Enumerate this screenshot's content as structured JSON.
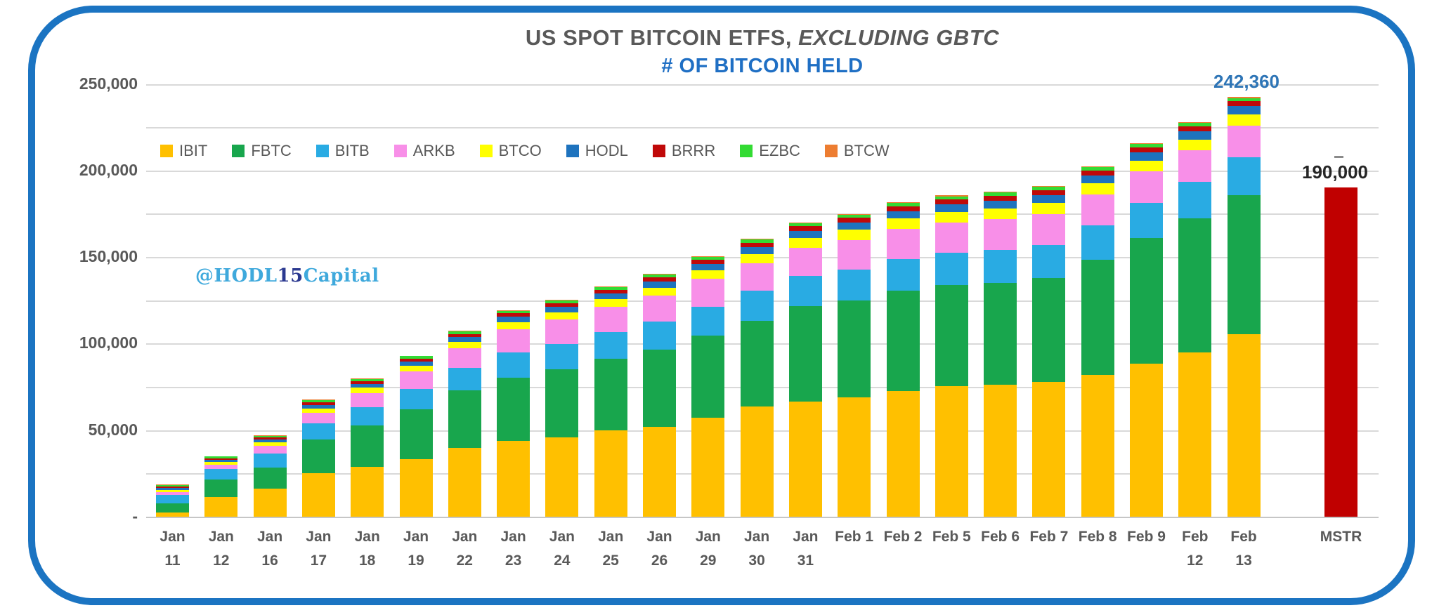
{
  "header": {
    "title_plain": "US SPOT BITCOIN ETFS, ",
    "title_italic": "EXCLUDING GBTC",
    "subtitle": "# OF BITCOIN HELD"
  },
  "watermark": {
    "prefix": "@HODL",
    "mid": "15",
    "suffix": "Capital"
  },
  "colors": {
    "border": "#1B74C2",
    "title": "#595959",
    "subtitle": "#1F6FC4",
    "axis_text": "#595959",
    "gridline": "#D9D9D9",
    "annotation_blue": "#2E75B6",
    "annotation_black": "#262626",
    "watermark_light_blue": "#3FA9DC",
    "watermark_dark_blue": "#2B3990"
  },
  "chart_data": {
    "type": "bar",
    "stacked": true,
    "title": "US SPOT BITCOIN ETFS, EXCLUDING GBTC",
    "subtitle": "# OF BITCOIN HELD",
    "xlabel": "",
    "ylabel": "",
    "ylim": [
      0,
      250000
    ],
    "gridline_step": 25000,
    "grid": true,
    "legend_position": "top",
    "y_axis": {
      "ticks": [
        {
          "label": "250,000",
          "value": 250000
        },
        {
          "label": "200,000",
          "value": 200000
        },
        {
          "label": "150,000",
          "value": 150000
        },
        {
          "label": "100,000",
          "value": 100000
        },
        {
          "label": "50,000",
          "value": 50000
        },
        {
          "label": "-",
          "value": 0
        }
      ]
    },
    "categories": [
      "Jan 11",
      "Jan 12",
      "Jan 16",
      "Jan 17",
      "Jan 18",
      "Jan 19",
      "Jan 22",
      "Jan 23",
      "Jan 24",
      "Jan 25",
      "Jan 26",
      "Jan 29",
      "Jan 30",
      "Jan 31",
      "Feb 1",
      "Feb 2",
      "Feb 5",
      "Feb 6",
      "Feb 7",
      "Feb 8",
      "Feb 9",
      "Feb 12",
      "Feb 13"
    ],
    "categories_lines": [
      [
        "Jan",
        "11"
      ],
      [
        "Jan",
        "12"
      ],
      [
        "Jan",
        "16"
      ],
      [
        "Jan",
        "17"
      ],
      [
        "Jan",
        "18"
      ],
      [
        "Jan",
        "19"
      ],
      [
        "Jan",
        "22"
      ],
      [
        "Jan",
        "23"
      ],
      [
        "Jan",
        "24"
      ],
      [
        "Jan",
        "25"
      ],
      [
        "Jan",
        "26"
      ],
      [
        "Jan",
        "29"
      ],
      [
        "Jan",
        "30"
      ],
      [
        "Jan",
        "31"
      ],
      [
        "Feb 1"
      ],
      [
        "Feb 2"
      ],
      [
        "Feb 5"
      ],
      [
        "Feb 6"
      ],
      [
        "Feb 7"
      ],
      [
        "Feb 8"
      ],
      [
        "Feb 9"
      ],
      [
        "Feb",
        "12"
      ],
      [
        "Feb",
        "13"
      ]
    ],
    "series": [
      {
        "name": "IBIT",
        "color": "#FFC000",
        "values": [
          2620,
          11440,
          16360,
          25070,
          28620,
          33430,
          39925,
          44000,
          45700,
          49950,
          52000,
          57000,
          63490,
          66620,
          69000,
          72470,
          75400,
          76420,
          78010,
          82100,
          88500,
          94870,
          105280
        ]
      },
      {
        "name": "FBTC",
        "color": "#18A64D",
        "values": [
          4920,
          9940,
          12110,
          19500,
          24300,
          28500,
          33000,
          36500,
          39300,
          41500,
          44500,
          47500,
          49800,
          55000,
          56000,
          58000,
          58300,
          58800,
          60000,
          66500,
          72500,
          77500,
          80500
        ]
      },
      {
        "name": "BITB",
        "color": "#29ABE3",
        "values": [
          5150,
          6300,
          7900,
          9300,
          10500,
          12000,
          13000,
          14500,
          14850,
          15400,
          16100,
          16900,
          17200,
          17400,
          17800,
          18300,
          18600,
          18800,
          19000,
          19600,
          20300,
          21000,
          21800
        ]
      },
      {
        "name": "ARKB",
        "color": "#F88FE8",
        "values": [
          1480,
          2310,
          4800,
          6200,
          8150,
          10100,
          11500,
          13400,
          13950,
          14300,
          15100,
          15900,
          16000,
          16300,
          17100,
          17400,
          17600,
          17800,
          17950,
          18050,
          18100,
          18150,
          18200
        ]
      },
      {
        "name": "BTCO",
        "color": "#FFFF00",
        "values": [
          1110,
          1480,
          1800,
          2600,
          2900,
          3200,
          3600,
          4100,
          4200,
          4400,
          4700,
          5000,
          5300,
          5600,
          5800,
          6000,
          6100,
          6200,
          6250,
          6350,
          6400,
          6450,
          6500
        ]
      },
      {
        "name": "HODL",
        "color": "#1E73BE",
        "values": [
          1170,
          1310,
          1500,
          2000,
          2200,
          2500,
          2700,
          3000,
          3200,
          3400,
          3600,
          3800,
          4000,
          4200,
          4300,
          4400,
          4500,
          4550,
          4600,
          4650,
          4700,
          4750,
          4800
        ]
      },
      {
        "name": "BRRR",
        "color": "#C00909",
        "values": [
          1100,
          1100,
          1250,
          1500,
          1600,
          1700,
          1850,
          2000,
          2100,
          2200,
          2300,
          2400,
          2500,
          2600,
          2650,
          2700,
          2720,
          2740,
          2760,
          2790,
          2810,
          2830,
          2850
        ]
      },
      {
        "name": "EZBC",
        "color": "#33DB33",
        "values": [
          750,
          900,
          1000,
          1100,
          1200,
          1300,
          1400,
          1500,
          1550,
          1600,
          1650,
          1700,
          1750,
          1800,
          1830,
          1860,
          1880,
          1900,
          1910,
          1920,
          1930,
          1940,
          1950
        ]
      },
      {
        "name": "BTCW",
        "color": "#ED7D31",
        "values": [
          200,
          220,
          280,
          330,
          350,
          360,
          380,
          380,
          400,
          420,
          440,
          460,
          470,
          475,
          478,
          480,
          480,
          480,
          480,
          480,
          480,
          480,
          480
        ]
      }
    ],
    "totals": [
      18500,
      35000,
      47000,
      67600,
      79820,
      93090,
      107355,
      119380,
      125250,
      133170,
      140390,
      150660,
      160510,
      169995,
      174958,
      181610,
      185580,
      187690,
      190960,
      202440,
      215720,
      227970,
      242360
    ],
    "annotations": {
      "last_bar_label": "242,360",
      "mstr_label": "190,000"
    },
    "mstr": {
      "category": "MSTR",
      "value": 190000,
      "color": "#C00000"
    }
  }
}
